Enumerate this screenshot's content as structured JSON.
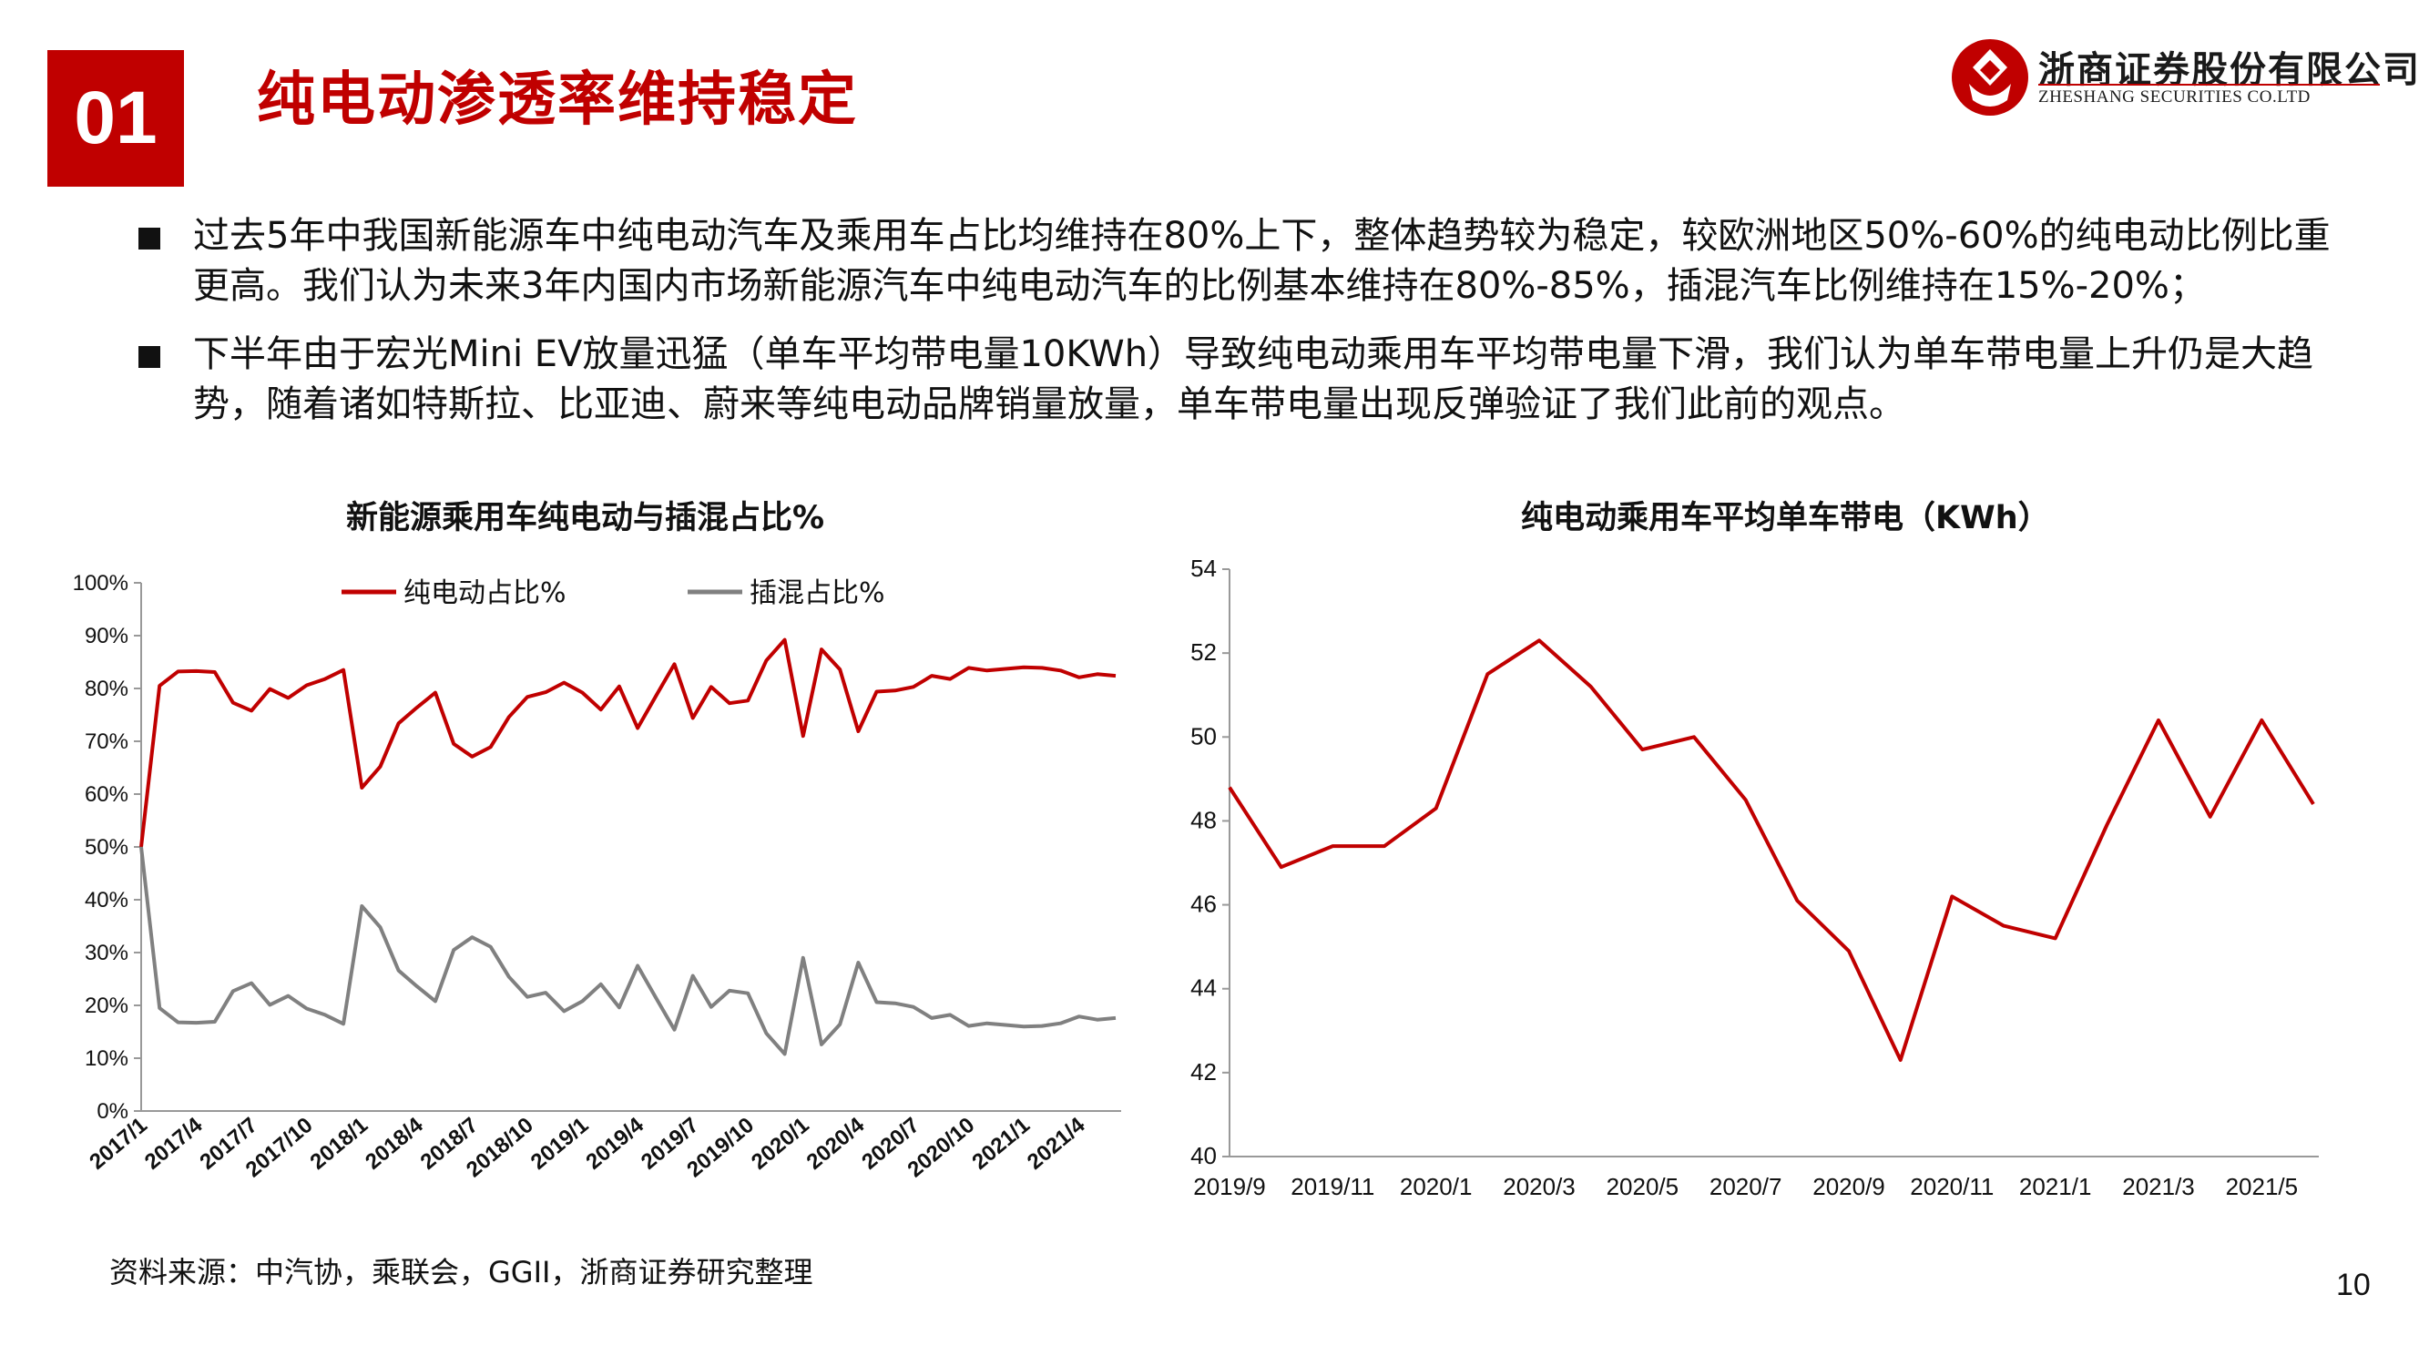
{
  "header": {
    "section_number": "01",
    "title": "纯电动渗透率维持稳定",
    "logo_cn": "浙商证券股份有限公司",
    "logo_en": "ZHESHANG SECURITIES CO.LTD"
  },
  "bullets": [
    "过去5年中我国新能源车中纯电动汽车及乘用车占比均维持在80%上下，整体趋势较为稳定，较欧洲地区50%-60%的纯电动比例比重更高。我们认为未来3年内国内市场新能源汽车中纯电动汽车的比例基本维持在80%-85%，插混汽车比例维持在15%-20%；",
    "下半年由于宏光Mini EV放量迅猛（单车平均带电量10KWh）导致纯电动乘用车平均带电量下滑，我们认为单车带电量上升仍是大趋势，随着诸如特斯拉、比亚迪、蔚来等纯电动品牌销量放量，单车带电量出现反弹验证了我们此前的观点。"
  ],
  "colors": {
    "accent": "#c00000",
    "series_bev": "#c00000",
    "series_phev": "#808080"
  },
  "chart_data": [
    {
      "type": "line",
      "title": "新能源乘用车纯电动与插混占比%",
      "xlabel": "",
      "ylabel": "",
      "ylim": [
        0,
        100
      ],
      "yticks": [
        "0%",
        "10%",
        "20%",
        "30%",
        "40%",
        "50%",
        "60%",
        "70%",
        "80%",
        "90%",
        "100%"
      ],
      "xtick_labels": [
        "2017/1",
        "2017/4",
        "2017/7",
        "2017/10",
        "2018/1",
        "2018/4",
        "2018/7",
        "2018/10",
        "2019/1",
        "2019/4",
        "2019/7",
        "2019/10",
        "2020/1",
        "2020/4",
        "2020/7",
        "2020/10",
        "2021/1",
        "2021/4"
      ],
      "legend_position": "top",
      "grid": false,
      "x": [
        "2017/1",
        "2017/2",
        "2017/3",
        "2017/4",
        "2017/5",
        "2017/6",
        "2017/7",
        "2017/8",
        "2017/9",
        "2017/10",
        "2017/11",
        "2017/12",
        "2018/1",
        "2018/2",
        "2018/3",
        "2018/4",
        "2018/5",
        "2018/6",
        "2018/7",
        "2018/8",
        "2018/9",
        "2018/10",
        "2018/11",
        "2018/12",
        "2019/1",
        "2019/2",
        "2019/3",
        "2019/4",
        "2019/5",
        "2019/6",
        "2019/7",
        "2019/8",
        "2019/9",
        "2019/10",
        "2019/11",
        "2019/12",
        "2020/1",
        "2020/2",
        "2020/3",
        "2020/4",
        "2020/5",
        "2020/6",
        "2020/7",
        "2020/8",
        "2020/9",
        "2020/10",
        "2020/11",
        "2020/12",
        "2021/1",
        "2021/2",
        "2021/3",
        "2021/4",
        "2021/5",
        "2021/6"
      ],
      "series": [
        {
          "name": "纯电动占比%",
          "color": "#c00000",
          "values": [
            50,
            80.5,
            83.2,
            83.3,
            83.1,
            77.3,
            75.8,
            79.9,
            78.2,
            80.6,
            81.8,
            83.5,
            61.2,
            65.2,
            73.4,
            76.4,
            79.2,
            69.5,
            67.1,
            68.9,
            74.6,
            78.4,
            79.3,
            81.1,
            79.2,
            76.0,
            80.4,
            72.5,
            78.6,
            84.6,
            74.4,
            80.3,
            77.2,
            77.7,
            85.3,
            89.2,
            71.0,
            87.4,
            83.6,
            71.9,
            79.4,
            79.6,
            80.3,
            82.4,
            81.8,
            83.9,
            83.4,
            83.7,
            84.0,
            83.9,
            83.4,
            82.1,
            82.7,
            82.4
          ]
        },
        {
          "name": "插混占比%",
          "color": "#808080",
          "values": [
            50,
            19.5,
            16.8,
            16.7,
            16.9,
            22.7,
            24.2,
            20.1,
            21.8,
            19.4,
            18.2,
            16.5,
            38.8,
            34.8,
            26.6,
            23.6,
            20.8,
            30.5,
            32.9,
            31.1,
            25.4,
            21.6,
            22.4,
            18.9,
            20.8,
            24.0,
            19.6,
            27.5,
            21.4,
            15.4,
            25.6,
            19.7,
            22.8,
            22.3,
            14.7,
            10.8,
            29.0,
            12.6,
            16.4,
            28.1,
            20.6,
            20.4,
            19.7,
            17.6,
            18.2,
            16.1,
            16.6,
            16.3,
            16.0,
            16.1,
            16.6,
            17.9,
            17.3,
            17.6
          ]
        }
      ]
    },
    {
      "type": "line",
      "title": "纯电动乘用车平均单车带电（KWh）",
      "xlabel": "",
      "ylabel": "",
      "ylim": [
        40,
        54
      ],
      "yticks": [
        "40",
        "42",
        "44",
        "46",
        "48",
        "50",
        "52",
        "54"
      ],
      "xtick_labels": [
        "2019/9",
        "2019/11",
        "2020/1",
        "2020/3",
        "2020/5",
        "2020/7",
        "2020/9",
        "2020/11",
        "2021/1",
        "2021/3",
        "2021/5"
      ],
      "legend_position": "none",
      "grid": false,
      "x": [
        "2019/9",
        "2019/10",
        "2019/11",
        "2019/12",
        "2020/1",
        "2020/2",
        "2020/3",
        "2020/4",
        "2020/5",
        "2020/6",
        "2020/7",
        "2020/8",
        "2020/9",
        "2020/10",
        "2020/11",
        "2020/12",
        "2021/1",
        "2021/2",
        "2021/3",
        "2021/4",
        "2021/5",
        "2021/6"
      ],
      "series": [
        {
          "name": "",
          "color": "#c00000",
          "values": [
            48.8,
            46.9,
            47.4,
            47.4,
            48.3,
            51.5,
            52.3,
            51.2,
            49.7,
            50.0,
            48.5,
            46.1,
            44.9,
            42.3,
            46.2,
            45.5,
            45.2,
            47.9,
            50.4,
            48.1,
            50.4,
            48.4
          ]
        }
      ]
    }
  ],
  "footer": {
    "source": "资料来源：中汽协，乘联会，GGII，浙商证券研究整理",
    "page_number": "10"
  }
}
